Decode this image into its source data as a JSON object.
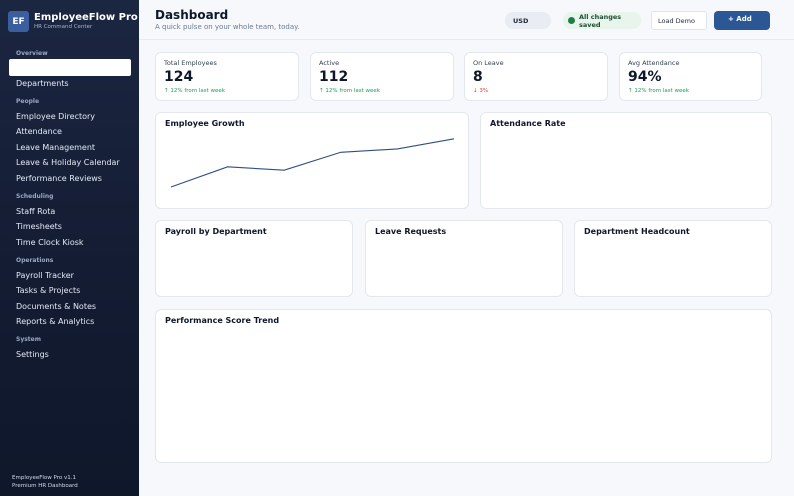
{
  "app": {
    "logo": "EF",
    "name": "EmployeeFlow Pro",
    "subtitle": "HR Command Center"
  },
  "sidebar": {
    "sections": [
      {
        "label": "Overview",
        "items": [
          "",
          "Departments"
        ]
      },
      {
        "label": "People",
        "items": [
          "Employee Directory",
          "Attendance",
          "Leave Management",
          "Leave & Holiday Calendar",
          "Performance Reviews"
        ]
      },
      {
        "label": "Scheduling",
        "items": [
          "Staff Rota",
          "Timesheets",
          "Time Clock Kiosk"
        ]
      },
      {
        "label": "Operations",
        "items": [
          "Payroll Tracker",
          "Tasks & Projects",
          "Documents & Notes",
          "Reports & Analytics"
        ]
      },
      {
        "label": "System",
        "items": [
          "Settings"
        ]
      }
    ],
    "footer": {
      "version": "EmployeeFlow Pro v1.1",
      "tagline": "Premium HR Dashboard"
    }
  },
  "header": {
    "title": "Dashboard",
    "subtitle": "A quick pulse on your whole team, today.",
    "currency": "USD",
    "status": "All changes saved",
    "load_demo": "Load Demo",
    "add": "+ Add"
  },
  "stats": [
    {
      "title": "Total Employees",
      "value": "124",
      "delta": "↑ 12% from last week",
      "trend": "up"
    },
    {
      "title": "Active",
      "value": "112",
      "delta": "↑ 12% from last week",
      "trend": "up"
    },
    {
      "title": "On Leave",
      "value": "8",
      "delta": "↓ 3%",
      "trend": "down"
    },
    {
      "title": "Avg Attendance",
      "value": "94%",
      "delta": "↑ 12% from last week",
      "trend": "up"
    }
  ],
  "panels": {
    "employee_growth": "Employee Growth",
    "attendance_rate": "Attendance Rate",
    "payroll_by_department": "Payroll by Department",
    "leave_requests": "Leave Requests",
    "department_headcount": "Department Headcount",
    "performance_trend": "Performance Score Trend"
  },
  "colors": {
    "accent": "#2c5795",
    "line": "#2e4f7f",
    "up": "#1f9d55",
    "down": "#dc3b3b"
  },
  "chart_data": {
    "type": "line",
    "title": "Employee Growth",
    "values": [
      0,
      36,
      30,
      62,
      68,
      86
    ],
    "ylim": [
      0,
      100
    ],
    "grid": false,
    "legend": "none"
  }
}
